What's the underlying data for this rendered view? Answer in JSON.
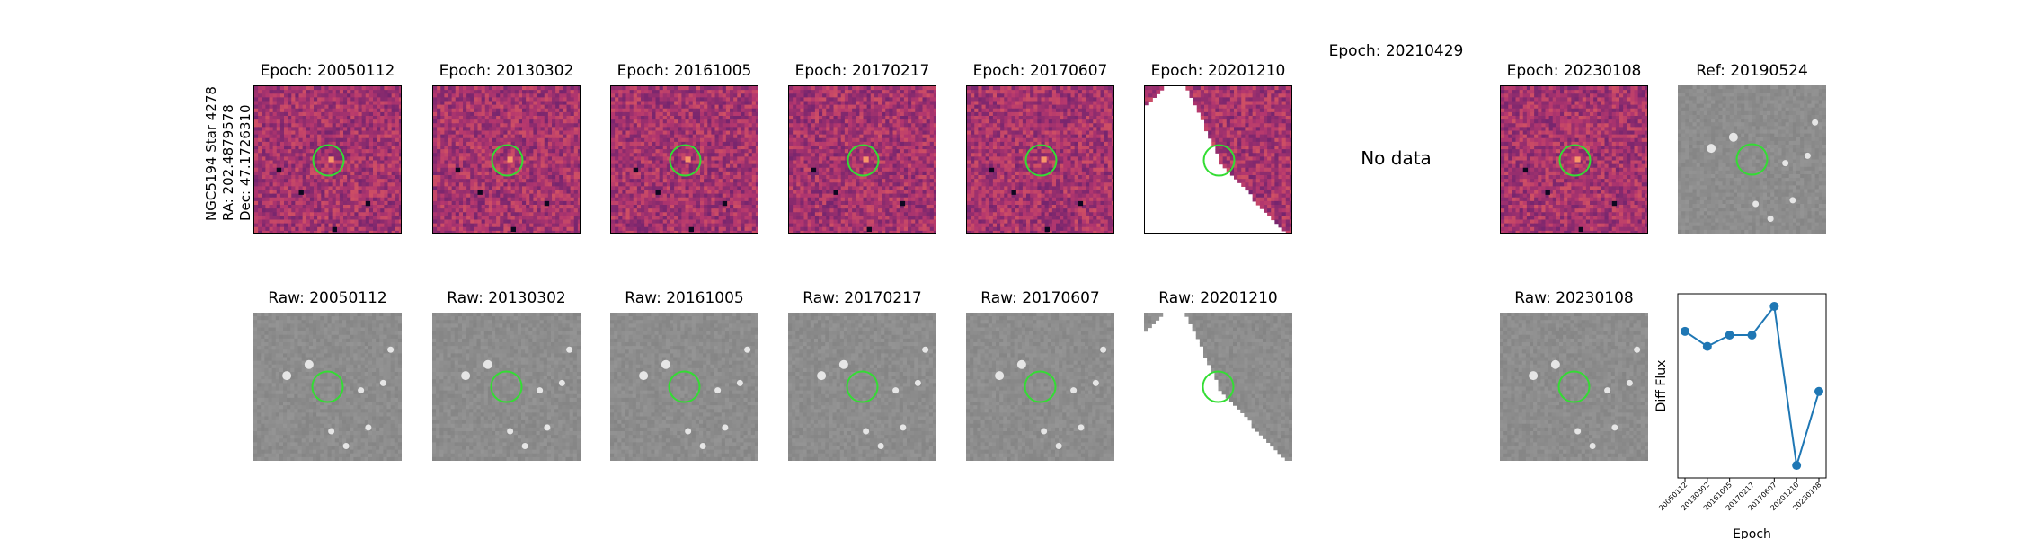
{
  "side_label": [
    "NGC5194 Star 4278",
    "RA: 202.4879578",
    "Dec: 47.1726310"
  ],
  "diff_row": [
    {
      "title": "Epoch: 20050112",
      "kind": "diff"
    },
    {
      "title": "Epoch: 20130302",
      "kind": "diff"
    },
    {
      "title": "Epoch: 20161005",
      "kind": "diff"
    },
    {
      "title": "Epoch: 20170217",
      "kind": "diff"
    },
    {
      "title": "Epoch: 20170607",
      "kind": "diff"
    },
    {
      "title": "Epoch: 20201210",
      "kind": "diff-partial"
    },
    {
      "title": "Epoch: 20210429",
      "kind": "nodata",
      "text": "No data"
    },
    {
      "title": "Epoch: 20230108",
      "kind": "diff"
    },
    {
      "title": "Ref: 20190524",
      "kind": "gray"
    }
  ],
  "raw_row": [
    {
      "title": "Raw: 20050112",
      "kind": "gray"
    },
    {
      "title": "Raw: 20130302",
      "kind": "gray"
    },
    {
      "title": "Raw: 20161005",
      "kind": "gray"
    },
    {
      "title": "Raw: 20170217",
      "kind": "gray"
    },
    {
      "title": "Raw: 20170607",
      "kind": "gray"
    },
    {
      "title": "Raw: 20201210",
      "kind": "gray-partial"
    },
    {
      "title": "",
      "kind": "empty"
    },
    {
      "title": "Raw: 20230108",
      "kind": "gray"
    }
  ],
  "colors": {
    "marker": "#33dd33",
    "line": "#1f77b4"
  },
  "chart_data": {
    "type": "line",
    "xlabel": "Epoch",
    "ylabel": "Diff Flux",
    "categories": [
      "20050112",
      "20130302",
      "20161005",
      "20170217",
      "20170607",
      "20201210",
      "20230108"
    ],
    "values": [
      0.62,
      0.5,
      0.59,
      0.59,
      0.82,
      -0.45,
      0.14
    ],
    "ylim": [
      -0.55,
      0.92
    ],
    "grid": false,
    "legend": "none"
  }
}
